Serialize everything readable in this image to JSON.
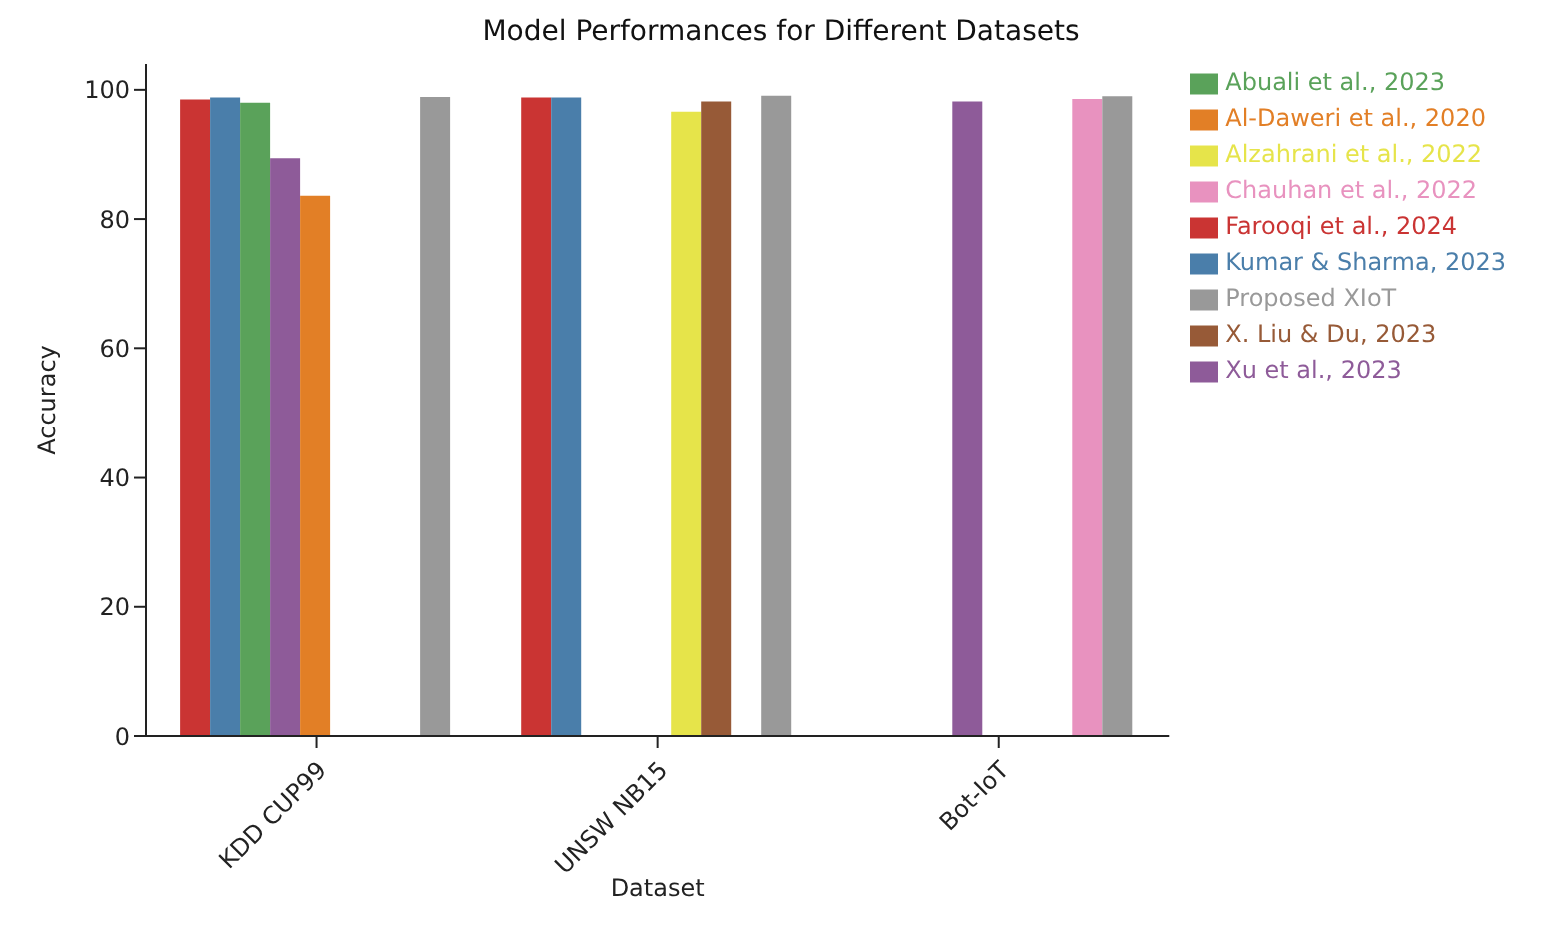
{
  "chart_data": {
    "type": "bar",
    "title": "Model Performances for Different Datasets",
    "xlabel": "Dataset",
    "ylabel": "Accuracy",
    "categories": [
      "KDD CUP99",
      "UNSW NB15",
      "Bot-IoT"
    ],
    "series": [
      {
        "name": "Farooqi et al., 2024",
        "color": "#ca3433",
        "values": [
          98.5,
          98.8,
          null
        ]
      },
      {
        "name": "Kumar & Sharma, 2023",
        "color": "#4a7eaa",
        "values": [
          98.8,
          98.8,
          null
        ]
      },
      {
        "name": "Abuali et al., 2023",
        "color": "#5aa25a",
        "values": [
          98.0,
          null,
          null
        ]
      },
      {
        "name": "Xu et al., 2023",
        "color": "#8e5b99",
        "values": [
          89.4,
          null,
          98.2
        ]
      },
      {
        "name": "Al-Daweri et al., 2020",
        "color": "#e27f26",
        "values": [
          83.6,
          null,
          null
        ]
      },
      {
        "name": "Alzahrani et al., 2022",
        "color": "#e6e44a",
        "values": [
          null,
          96.6,
          null
        ]
      },
      {
        "name": "X. Liu & Du, 2023",
        "color": "#975a37",
        "values": [
          null,
          98.2,
          null
        ]
      },
      {
        "name": "Chauhan et al., 2022",
        "color": "#e892bf",
        "values": [
          null,
          null,
          98.6
        ]
      },
      {
        "name": "Proposed XIoT",
        "color": "#999999",
        "values": [
          98.9,
          99.1,
          99.0
        ]
      }
    ],
    "ylim": [
      0,
      104
    ],
    "yticks": [
      0,
      20,
      40,
      60,
      80,
      100
    ],
    "grid": false,
    "legend": "top right"
  }
}
